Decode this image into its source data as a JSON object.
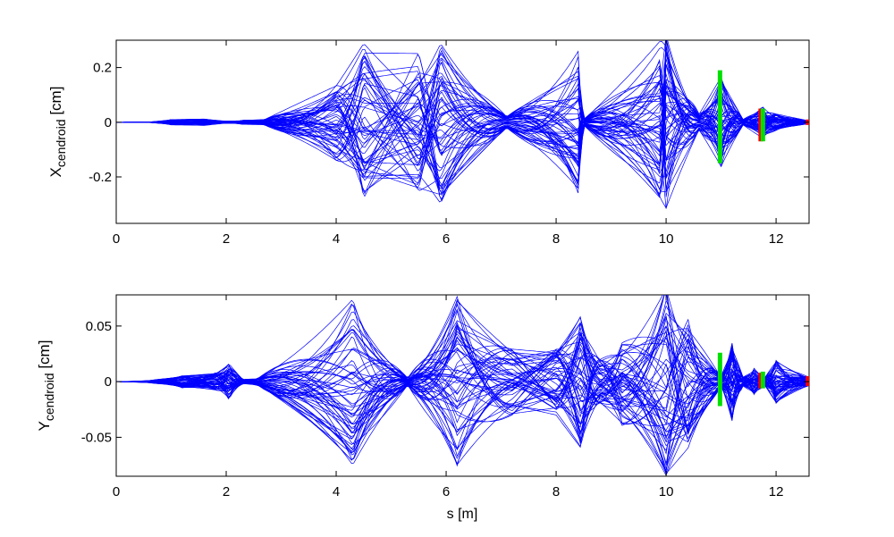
{
  "chart_data": [
    {
      "type": "line",
      "ylabel_main": "X",
      "ylabel_sub": "cendroid",
      "ylabel_unit": "[cm]",
      "xlabel": "",
      "xlim": [
        0,
        12.6
      ],
      "ylim": [
        -0.37,
        0.3
      ],
      "xticks": [
        0,
        2,
        4,
        6,
        8,
        10,
        12
      ],
      "xtick_labels": [
        "0",
        "2",
        "4",
        "6",
        "8",
        "10",
        "12"
      ],
      "yticks": [
        -0.2,
        0,
        0.2
      ],
      "ytick_labels": [
        "-0.2",
        "0",
        "0.2"
      ],
      "grid": false,
      "series_color": "#0000ff",
      "n_series": 60,
      "envelope_s": [
        0,
        0.6,
        1.0,
        1.6,
        2.0,
        2.3,
        2.7,
        4.0,
        4.5,
        5.5,
        5.9,
        7.1,
        8.4,
        8.5,
        9.9,
        10.0,
        10.6,
        11.0,
        11.4,
        11.75,
        12.0,
        12.6
      ],
      "envelope_amplitude": [
        0,
        0.001,
        0.01,
        0.012,
        0.004,
        0.008,
        0.01,
        0.14,
        0.29,
        0.26,
        0.3,
        0.02,
        0.26,
        0.01,
        0.3,
        0.32,
        0.03,
        0.17,
        0.01,
        0.06,
        0.03,
        0.005
      ],
      "markers": [
        {
          "s": 10.98,
          "ymin": -0.15,
          "ymax": 0.19,
          "color": "#00e000"
        },
        {
          "s": 11.72,
          "ymin": -0.07,
          "ymax": 0.05,
          "color": "#ff0000"
        },
        {
          "s": 11.76,
          "ymin": -0.07,
          "ymax": 0.05,
          "color": "#00e000"
        },
        {
          "s": 12.58,
          "ymin": -0.01,
          "ymax": 0.01,
          "color": "#ff0000"
        }
      ]
    },
    {
      "type": "line",
      "ylabel_main": "Y",
      "ylabel_sub": "cendroid",
      "ylabel_unit": "[cm]",
      "xlabel": "s [m]",
      "xlim": [
        0,
        12.6
      ],
      "ylim": [
        -0.085,
        0.078
      ],
      "xticks": [
        0,
        2,
        4,
        6,
        8,
        10,
        12
      ],
      "xtick_labels": [
        "0",
        "2",
        "4",
        "6",
        "8",
        "10",
        "12"
      ],
      "yticks": [
        -0.05,
        0,
        0.05
      ],
      "ytick_labels": [
        "-0.05",
        "0",
        "0.05"
      ],
      "grid": false,
      "series_color": "#0000ff",
      "n_series": 60,
      "envelope_s": [
        0,
        0.6,
        1.2,
        1.8,
        2.05,
        2.3,
        2.6,
        4.3,
        5.3,
        6.2,
        7.2,
        8.0,
        8.45,
        8.8,
        9.2,
        10.0,
        10.4,
        11.0,
        11.2,
        11.4,
        11.6,
        11.8,
        12.0,
        12.6
      ],
      "envelope_amplitude": [
        0,
        0.001,
        0.006,
        0.008,
        0.017,
        0.002,
        0.004,
        0.075,
        0.003,
        0.077,
        0.03,
        0.03,
        0.06,
        0.02,
        0.04,
        0.085,
        0.06,
        0.004,
        0.036,
        0.004,
        0.012,
        0.004,
        0.02,
        0.004
      ],
      "markers": [
        {
          "s": 10.98,
          "ymin": -0.022,
          "ymax": 0.026,
          "color": "#00e000"
        },
        {
          "s": 11.72,
          "ymin": -0.006,
          "ymax": 0.008,
          "color": "#ff0000"
        },
        {
          "s": 11.76,
          "ymin": -0.006,
          "ymax": 0.009,
          "color": "#00e000"
        },
        {
          "s": 12.58,
          "ymin": -0.004,
          "ymax": 0.005,
          "color": "#ff0000"
        }
      ]
    }
  ]
}
